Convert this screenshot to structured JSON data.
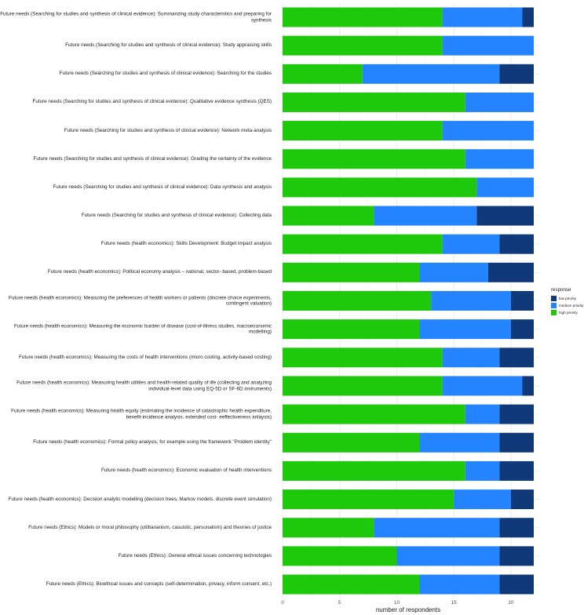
{
  "chart_data": {
    "type": "bar",
    "orientation": "horizontal",
    "stacked": true,
    "xlabel": "number of respondents",
    "xlim": [
      0,
      22
    ],
    "xticks": [
      0,
      5,
      10,
      15,
      20
    ],
    "grid": true,
    "legend_position": "right",
    "legend_title": "response",
    "series": [
      {
        "name": "high priority",
        "color": "#1ec80a"
      },
      {
        "name": "medium priority",
        "color": "#2483ff"
      },
      {
        "name": "low priority",
        "color": "#10397a"
      }
    ],
    "legend_order": [
      "low priority",
      "medium priority",
      "high priority"
    ],
    "categories": [
      {
        "label": "Future needs (Searching for studies and synthesis of clinical evidence): Summarizing study characteristics and preparing for synthesis",
        "values": [
          14,
          7,
          1
        ]
      },
      {
        "label": "Future needs (Searching for studies and synthesis of clinical evidence): Study appraising skills",
        "values": [
          14,
          8,
          0
        ]
      },
      {
        "label": "Future needs (Searching for studies and synthesis of clinical evidence): Searching for the studies",
        "values": [
          7,
          12,
          3
        ]
      },
      {
        "label": "Future needs (Searching for studies and synthesis of clinical evidence): Qualitative evidence synthesis (QES)",
        "values": [
          16,
          6,
          0
        ]
      },
      {
        "label": "Future needs (Searching for studies and synthesis of clinical evidence): Network meta-analysis",
        "values": [
          14,
          8,
          0
        ]
      },
      {
        "label": "Future needs (Searching for studies and synthesis of clinical evidence): Grading the certainty of the evidence",
        "values": [
          16,
          6,
          0
        ]
      },
      {
        "label": "Future needs (Searching for studies and synthesis of clinical evidence): Data synthesis and analysis",
        "values": [
          17,
          5,
          0
        ]
      },
      {
        "label": "Future needs (Searching for studies and synthesis of clinical evidence): Collecting data",
        "values": [
          8,
          9,
          5
        ]
      },
      {
        "label": "Future needs (health economics): Skills Development: Budget impact analysis",
        "values": [
          14,
          5,
          3
        ]
      },
      {
        "label": "Future needs (health economics): Political economy analysis – national, sector- based, problem-based",
        "values": [
          12,
          6,
          4
        ]
      },
      {
        "label": "Future needs (health economics): Measuring the preferences of health workers or patients (discrete choice experiments, contingent valuation)",
        "values": [
          13,
          7,
          2
        ]
      },
      {
        "label": "Future needs (health economics): Measuring the economic burden of disease (cost-of-illness studies, macroeconomic modelling)",
        "values": [
          12,
          8,
          2
        ]
      },
      {
        "label": "Future needs (health economics): Measuring the costs of health interventions (micro costing, activity-based costing)",
        "values": [
          14,
          5,
          3
        ]
      },
      {
        "label": "Future needs (health economics): Measuring health utilities and health-related quality of life (collecting and analyzing individual-level data using EQ-5D or SF-6D instruments)",
        "values": [
          14,
          7,
          1
        ]
      },
      {
        "label": "Future needs (health economics): Measuring health equity (estimating the incidence of catastrophic health expenditure, benefit-incidence analysis, extended cost- eeffectiveness anlaysis)",
        "values": [
          16,
          3,
          3
        ]
      },
      {
        "label": "Future needs (health economics): Formal policy analysis, for example using the framework \"Problem identity\"",
        "values": [
          12,
          7,
          3
        ]
      },
      {
        "label": "Future needs (health economics): Economic evaluation of health interventions",
        "values": [
          16,
          3,
          3
        ]
      },
      {
        "label": "Future needs (health economics): Decision analytic modelling (decision trees, Markov models, discrete event simulation)",
        "values": [
          15,
          5,
          2
        ]
      },
      {
        "label": "Future needs (Ethics): Models or moral philosophy (utilitarianism, casuistic, personalism) and theories of justice",
        "values": [
          8,
          11,
          3
        ]
      },
      {
        "label": "Future needs (Ethics): General ethical issues concerning technologies",
        "values": [
          10,
          9,
          3
        ]
      },
      {
        "label": "Future needs (Ethics): Bioethical issues and concepts (self-determination, privacy, inform consent, etc.)",
        "values": [
          12,
          7,
          3
        ]
      }
    ]
  }
}
